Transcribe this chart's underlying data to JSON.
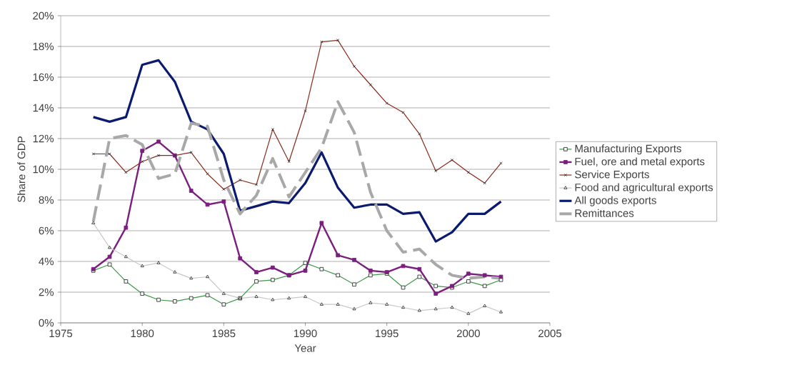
{
  "chart_data": {
    "type": "line",
    "xlabel": "Year",
    "ylabel": "Share of GDP",
    "x": [
      1977,
      1978,
      1979,
      1980,
      1981,
      1982,
      1983,
      1984,
      1985,
      1986,
      1987,
      1988,
      1989,
      1990,
      1991,
      1992,
      1993,
      1994,
      1995,
      1996,
      1997,
      1998,
      1999,
      2000,
      2001,
      2002
    ],
    "series": [
      {
        "name": "Manufacturing Exports",
        "color": "#3a9a48",
        "marker": "square",
        "line_style": "solid",
        "values": [
          3.4,
          3.8,
          2.7,
          1.9,
          1.5,
          1.4,
          1.6,
          1.8,
          1.2,
          1.6,
          2.7,
          2.8,
          3.1,
          3.9,
          3.5,
          3.1,
          2.5,
          3.1,
          3.2,
          2.3,
          3.0,
          2.4,
          2.3,
          2.7,
          2.4,
          2.8
        ]
      },
      {
        "name": "Fuel, ore and metal exports",
        "color": "#7b1f7f",
        "marker": "square",
        "line_style": "solid",
        "values": [
          3.5,
          4.3,
          6.2,
          11.2,
          11.8,
          10.9,
          8.6,
          7.7,
          7.9,
          4.2,
          3.3,
          3.6,
          3.1,
          3.4,
          6.5,
          4.4,
          4.1,
          3.4,
          3.3,
          3.7,
          3.5,
          1.9,
          2.4,
          3.2,
          3.1,
          3.0
        ]
      },
      {
        "name": "Service Exports",
        "color": "#8b2a1a",
        "marker": "cross",
        "line_style": "solid",
        "values": [
          11.0,
          11.0,
          9.8,
          10.5,
          10.9,
          10.9,
          11.1,
          9.7,
          8.7,
          9.3,
          9.0,
          12.6,
          10.5,
          13.8,
          18.3,
          18.4,
          16.7,
          15.5,
          14.3,
          13.7,
          12.3,
          9.9,
          10.6,
          9.8,
          9.1,
          10.4
        ]
      },
      {
        "name": "Food and agricultural exports",
        "color": "#c8c8c8",
        "marker": "triangle",
        "line_style": "solid",
        "values": [
          6.5,
          4.9,
          4.3,
          3.7,
          3.9,
          3.3,
          2.9,
          3.0,
          1.9,
          1.6,
          1.7,
          1.5,
          1.6,
          1.7,
          1.2,
          1.2,
          0.9,
          1.3,
          1.2,
          1.0,
          0.8,
          0.9,
          1.0,
          0.6,
          1.1,
          0.7
        ]
      },
      {
        "name": "All goods exports",
        "color": "#0a1a6e",
        "marker": "none",
        "line_style": "solid",
        "values": [
          13.4,
          13.1,
          13.4,
          16.8,
          17.1,
          15.7,
          13.1,
          12.6,
          11.0,
          7.3,
          7.6,
          7.9,
          7.8,
          9.1,
          11.1,
          8.8,
          7.5,
          7.7,
          7.7,
          7.1,
          7.2,
          5.3,
          5.9,
          7.1,
          7.1,
          7.9
        ]
      },
      {
        "name": "Remittances",
        "color": "#a8a8a8",
        "marker": "none",
        "line_style": "dashed",
        "values": [
          6.6,
          12.0,
          12.2,
          11.6,
          9.4,
          9.7,
          13.0,
          12.8,
          9.3,
          7.1,
          8.3,
          10.7,
          8.2,
          9.8,
          11.4,
          14.4,
          12.4,
          8.5,
          6.0,
          4.6,
          4.8,
          3.8,
          3.1,
          2.9,
          3.0,
          2.9
        ]
      }
    ],
    "xlim": [
      1975,
      2005
    ],
    "xticks": [
      1975,
      1980,
      1985,
      1990,
      1995,
      2000,
      2005
    ],
    "ylim": [
      0,
      20
    ],
    "yticks": [
      {
        "value": 0,
        "label": "0%"
      },
      {
        "value": 2,
        "label": "2%"
      },
      {
        "value": 4,
        "label": "4%"
      },
      {
        "value": 6,
        "label": "6%"
      },
      {
        "value": 8,
        "label": "8%"
      },
      {
        "value": 10,
        "label": "10%"
      },
      {
        "value": 12,
        "label": "12%"
      },
      {
        "value": 14,
        "label": "14%"
      },
      {
        "value": 16,
        "label": "16%"
      },
      {
        "value": 18,
        "label": "18%"
      },
      {
        "value": 20,
        "label": "20%"
      }
    ],
    "grid": "y",
    "legend": "right"
  }
}
